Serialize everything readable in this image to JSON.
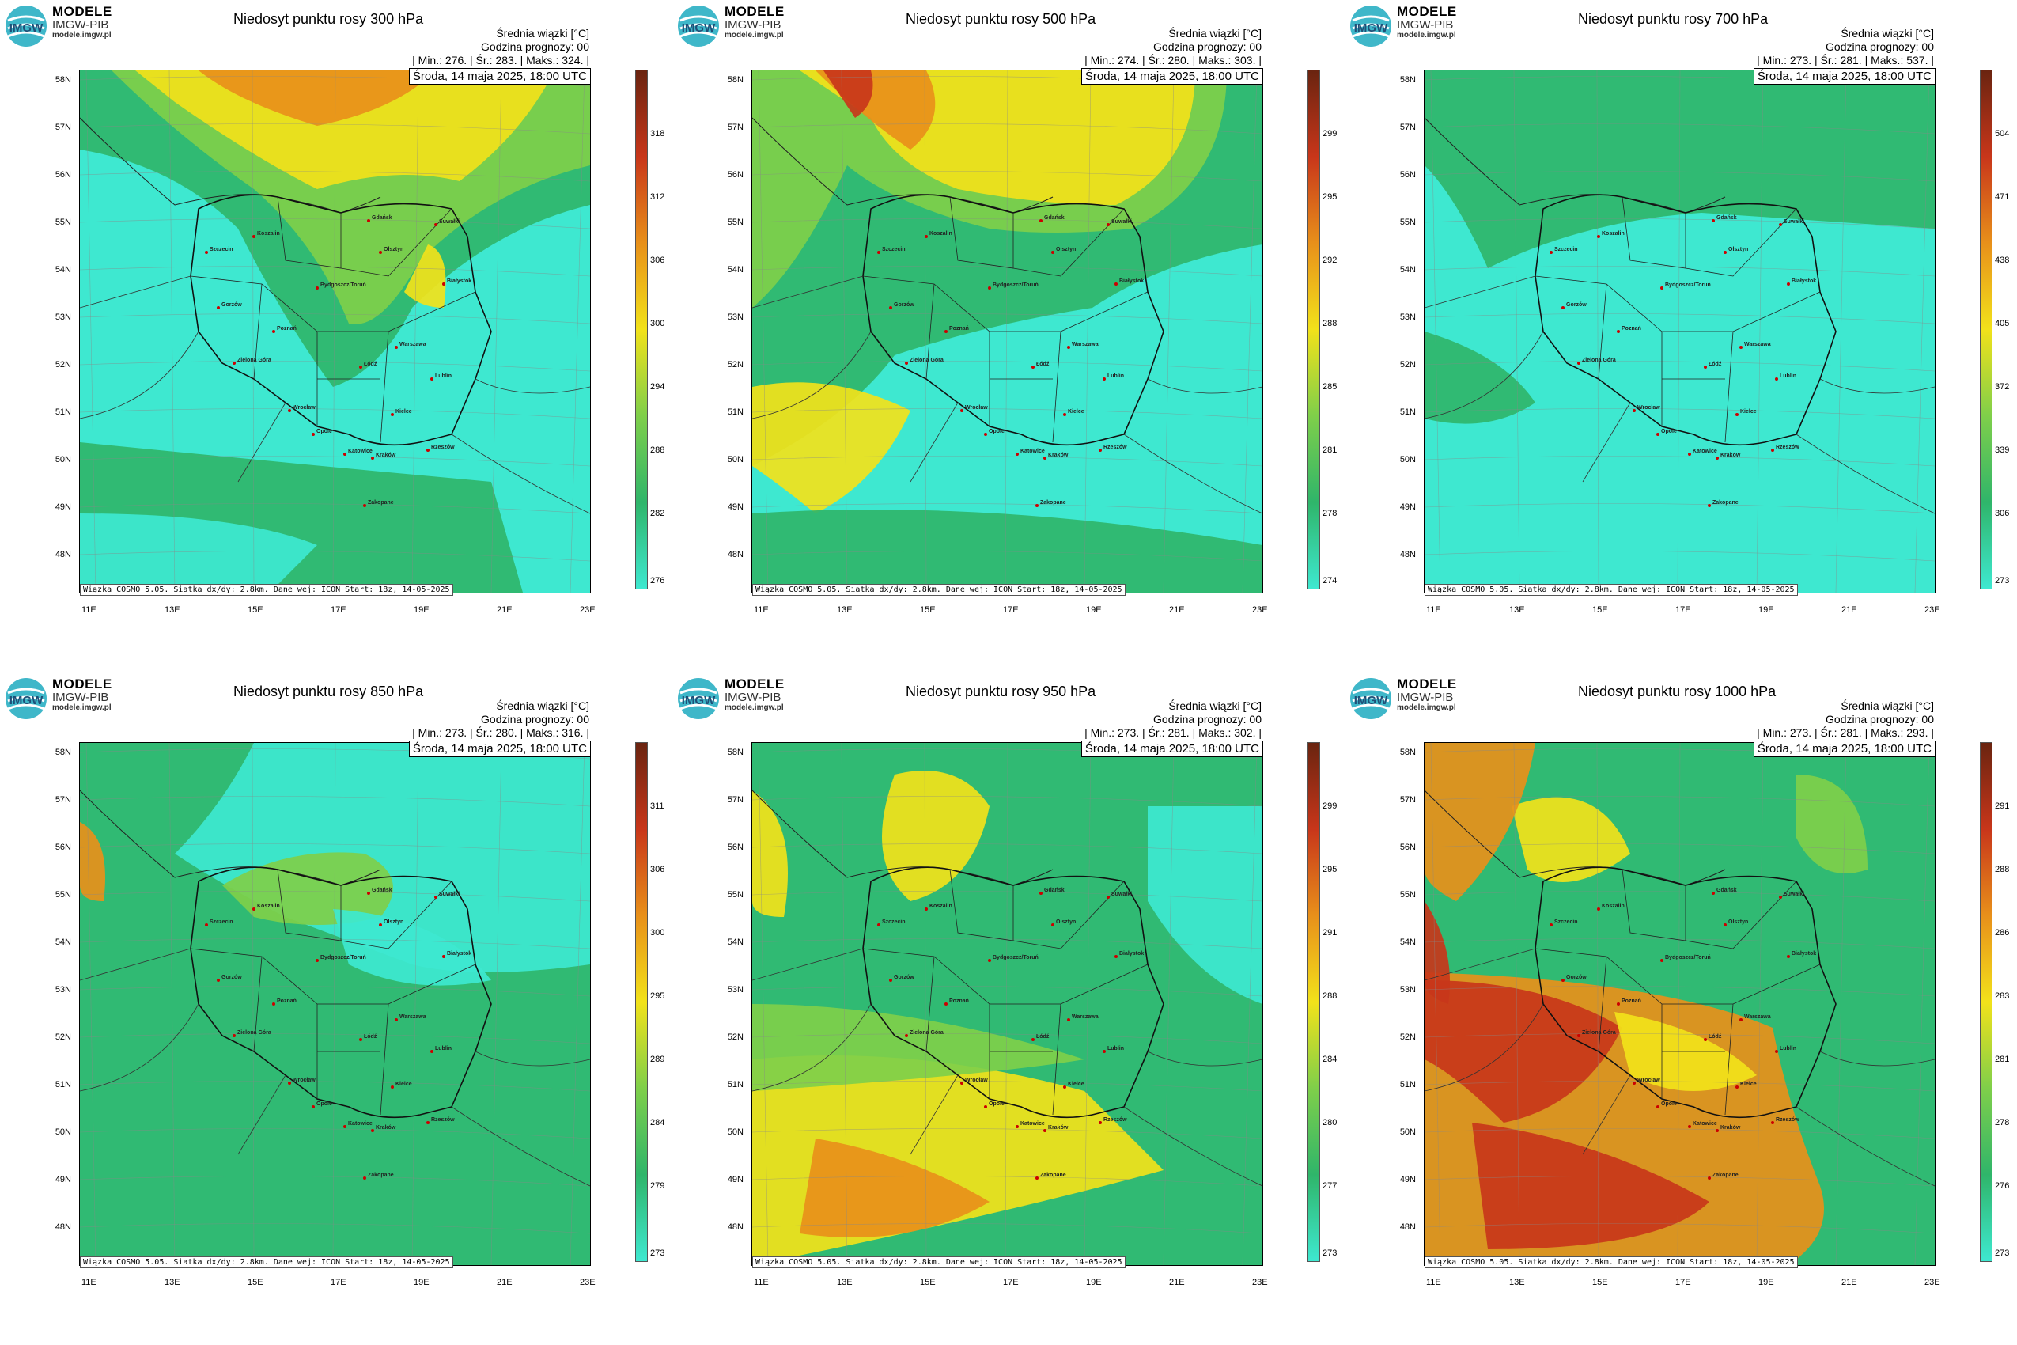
{
  "brand": {
    "line1": "MODELE",
    "line2": "IMGW-PIB",
    "line3": "modele.imgw.pl",
    "logo_text": "IMGW"
  },
  "common": {
    "legend_label": "Średnia wiązki [",
    "legend_unit": "°C]",
    "forecast_hour": "Godzina prognozy: 00",
    "date": "Środa, 14 maja 2025, 18:00 UTC",
    "footer": "Wiązka COSMO 5.05. Siatka dx/dy: 2.8km. Dane wej: ICON Start: 18z, 14-05-2025",
    "lat_labels": [
      "58N",
      "57N",
      "56N",
      "55N",
      "54N",
      "53N",
      "52N",
      "51N",
      "50N",
      "49N",
      "48N"
    ],
    "lon_labels": [
      "11E",
      "13E",
      "15E",
      "17E",
      "19E",
      "21E",
      "23E"
    ],
    "cities": [
      {
        "name": "Gdańsk"
      },
      {
        "name": "Koszalin"
      },
      {
        "name": "Olsztyn"
      },
      {
        "name": "Suwałki"
      },
      {
        "name": "Szczecin"
      },
      {
        "name": "Białystok"
      },
      {
        "name": "Bydgoszcz/Toruń"
      },
      {
        "name": "Gorzów"
      },
      {
        "name": "Poznań"
      },
      {
        "name": "Warszawa"
      },
      {
        "name": "Zielona Góra"
      },
      {
        "name": "Łódź"
      },
      {
        "name": "Lublin"
      },
      {
        "name": "Wrocław"
      },
      {
        "name": "Kielce"
      },
      {
        "name": "Opole"
      },
      {
        "name": "Rzeszów"
      },
      {
        "name": "Katowice"
      },
      {
        "name": "Kraków"
      },
      {
        "name": "Zakopane"
      }
    ]
  },
  "panels": [
    {
      "title": "Niedosyt punktu rosy 300 hPa",
      "stats": {
        "min": "| Min.:   276. | Śr.:   283. | Maks.:   324. |"
      },
      "scale_ticks": [
        "318",
        "312",
        "306",
        "300",
        "294",
        "288",
        "282",
        "276"
      ],
      "palette": "p300"
    },
    {
      "title": "Niedosyt punktu rosy 500 hPa",
      "stats": {
        "min": "| Min.:   274. | Śr.:   280. | Maks.:   303. |"
      },
      "scale_ticks": [
        "299",
        "295",
        "292",
        "288",
        "285",
        "281",
        "278",
        "274"
      ],
      "palette": "p500"
    },
    {
      "title": "Niedosyt punktu rosy 700 hPa",
      "stats": {
        "min": "| Min.:   273. | Śr.:   281. | Maks.:   537. |"
      },
      "scale_ticks": [
        "504",
        "471",
        "438",
        "405",
        "372",
        "339",
        "306",
        "273"
      ],
      "palette": "p700"
    },
    {
      "title": "Niedosyt punktu rosy 850 hPa",
      "stats": {
        "min": "| Min.:   273. | Śr.:   280. | Maks.:   316. |"
      },
      "scale_ticks": [
        "311",
        "306",
        "300",
        "295",
        "289",
        "284",
        "279",
        "273"
      ],
      "palette": "p850"
    },
    {
      "title": "Niedosyt punktu rosy 950 hPa",
      "stats": {
        "min": "| Min.:   273. | Śr.:   281. | Maks.:   302. |"
      },
      "scale_ticks": [
        "299",
        "295",
        "291",
        "288",
        "284",
        "280",
        "277",
        "273"
      ],
      "palette": "p950"
    },
    {
      "title": "Niedosyt punktu rosy 1000 hPa",
      "stats": {
        "min": "| Min.:   273. | Śr.:   281. | Maks.:   293. |"
      },
      "scale_ticks": [
        "291",
        "288",
        "286",
        "283",
        "281",
        "278",
        "276",
        "273"
      ],
      "palette": "p1000"
    }
  ],
  "colors": {
    "cyan": "#3ee8d0",
    "green": "#2fb56a",
    "lightgreen": "#7fcf4a",
    "yellow": "#f2e21a",
    "orange": "#e8901a",
    "red": "#c8361a",
    "darkred": "#6a2410"
  }
}
